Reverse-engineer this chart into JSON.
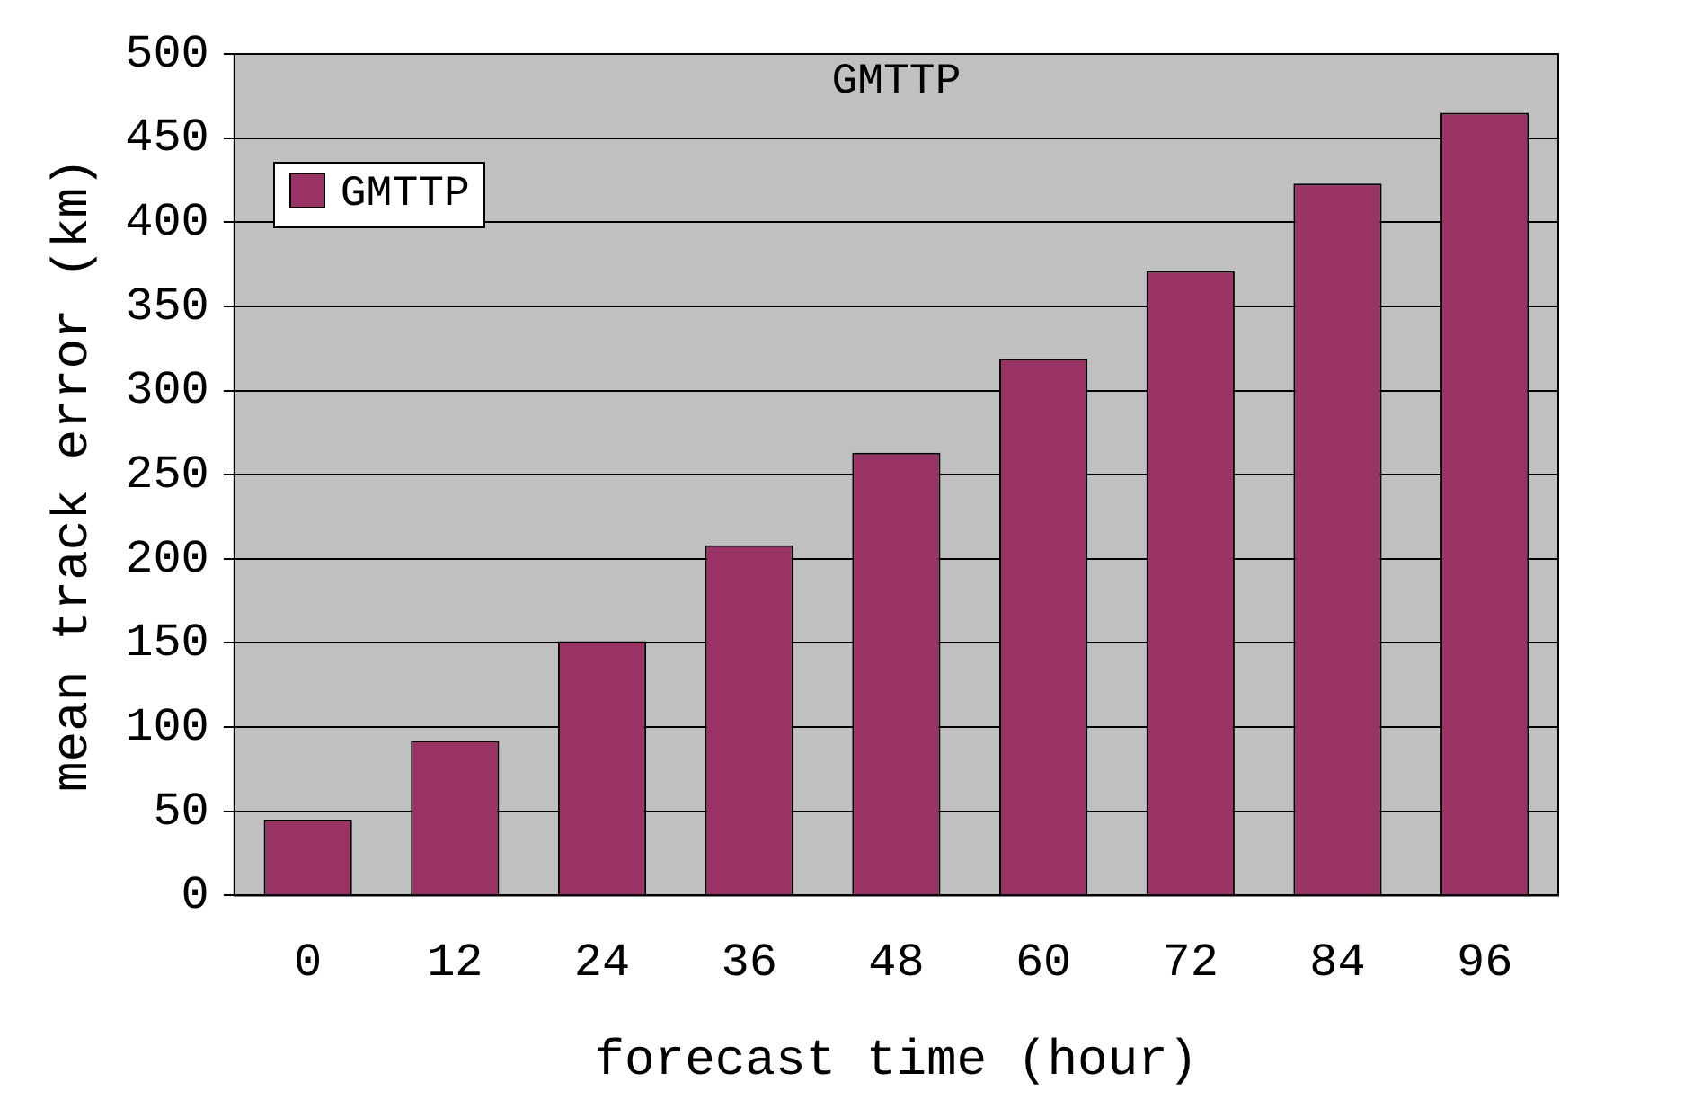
{
  "chart_data": {
    "type": "bar",
    "title": "GMTTP",
    "xlabel": "forecast time (hour)",
    "ylabel": "mean track error (km)",
    "categories": [
      "0",
      "12",
      "24",
      "36",
      "48",
      "60",
      "72",
      "84",
      "96"
    ],
    "series": [
      {
        "name": "GMTTP",
        "color": "#993366",
        "values": [
          45,
          92,
          151,
          208,
          263,
          319,
          371,
          423,
          465
        ]
      }
    ],
    "ylim": [
      0,
      500
    ],
    "yticks": [
      0,
      50,
      100,
      150,
      200,
      250,
      300,
      350,
      400,
      450,
      500
    ],
    "grid": "y",
    "legend": "top left"
  }
}
